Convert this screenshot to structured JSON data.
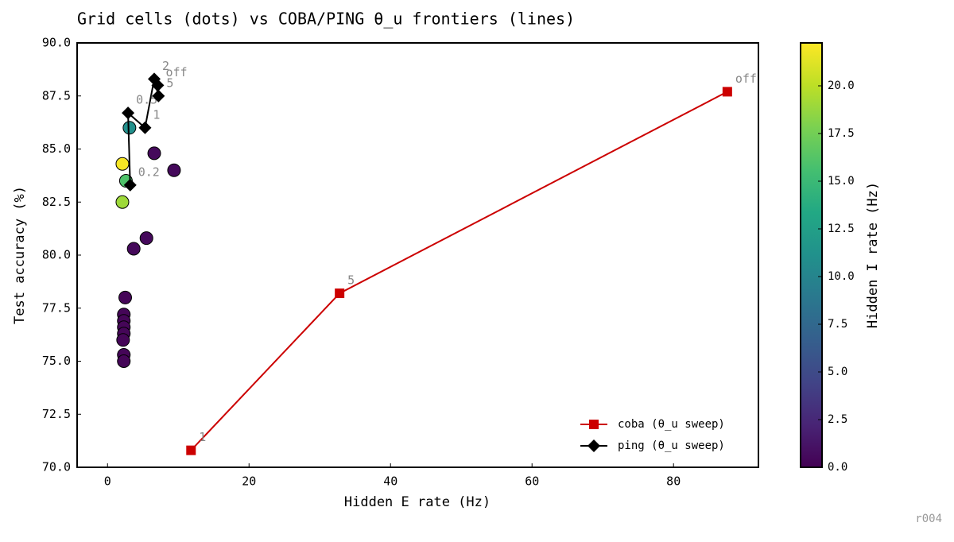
{
  "chart_data": {
    "type": "scatter-frontier",
    "title": "Grid cells (dots) vs COBA/PING θ_u frontiers (lines)",
    "x_label": "Hidden E rate (Hz)",
    "y_label": "Test accuracy (%)",
    "xlim": [
      -4.3,
      92.0
    ],
    "ylim": [
      70,
      90
    ],
    "xticks": [
      0,
      20,
      40,
      60,
      80
    ],
    "yticks": [
      {
        "value": 70,
        "label": "70.0"
      },
      72.5,
      {
        "value": 75,
        "label": "75.0"
      },
      77.5,
      {
        "value": 80,
        "label": "80.0"
      },
      82.5,
      {
        "value": 85,
        "label": "85.0"
      },
      87.5,
      {
        "value": 90,
        "label": "90.0"
      }
    ],
    "grid_cells": {
      "x": [
        3.1,
        6.6,
        9.4,
        2.1,
        2.6,
        2.1,
        5.5,
        3.7,
        2.5,
        2.3,
        2.3,
        2.3,
        2.3,
        2.2,
        2.3,
        2.3
      ],
      "y": [
        86.0,
        84.8,
        84.0,
        84.3,
        83.5,
        82.5,
        80.8,
        80.3,
        78.0,
        77.2,
        76.9,
        76.6,
        76.3,
        76.0,
        75.3,
        75.0
      ],
      "c": [
        11.0,
        0.5,
        0.5,
        22.0,
        16.0,
        19.0,
        0.5,
        0.5,
        0.3,
        0.3,
        0.3,
        0.3,
        0.3,
        0.3,
        0.3,
        0.3
      ]
    },
    "series": [
      {
        "name": "coba (θ_u sweep)",
        "color": "#cc0000",
        "marker": "square",
        "x": [
          11.8,
          32.8,
          87.6
        ],
        "y": [
          70.8,
          78.2,
          87.7
        ],
        "point_labels": [
          "1",
          "5",
          "off"
        ]
      },
      {
        "name": "ping (θ_u sweep)",
        "color": "#000000",
        "marker": "diamond",
        "x": [
          3.2,
          2.9,
          5.3,
          6.6,
          7.2,
          7.1
        ],
        "y": [
          83.3,
          86.7,
          86.0,
          88.3,
          87.5,
          88.0
        ],
        "point_labels": [
          "0.2",
          "0.5",
          "1",
          "2",
          "5",
          "off"
        ]
      }
    ],
    "legend": "lower right",
    "colorbar": {
      "label": "Hidden I rate (Hz)",
      "colormap": "viridis",
      "lim": [
        0,
        22.25
      ],
      "ticks": [
        {
          "value": 0,
          "label": "0.0"
        },
        2.5,
        {
          "value": 5,
          "label": "5.0"
        },
        7.5,
        {
          "value": 10,
          "label": "10.0"
        },
        12.5,
        {
          "value": 15,
          "label": "15.0"
        },
        17.5,
        {
          "value": 20,
          "label": "20.0"
        }
      ]
    },
    "footnote": "r004"
  }
}
